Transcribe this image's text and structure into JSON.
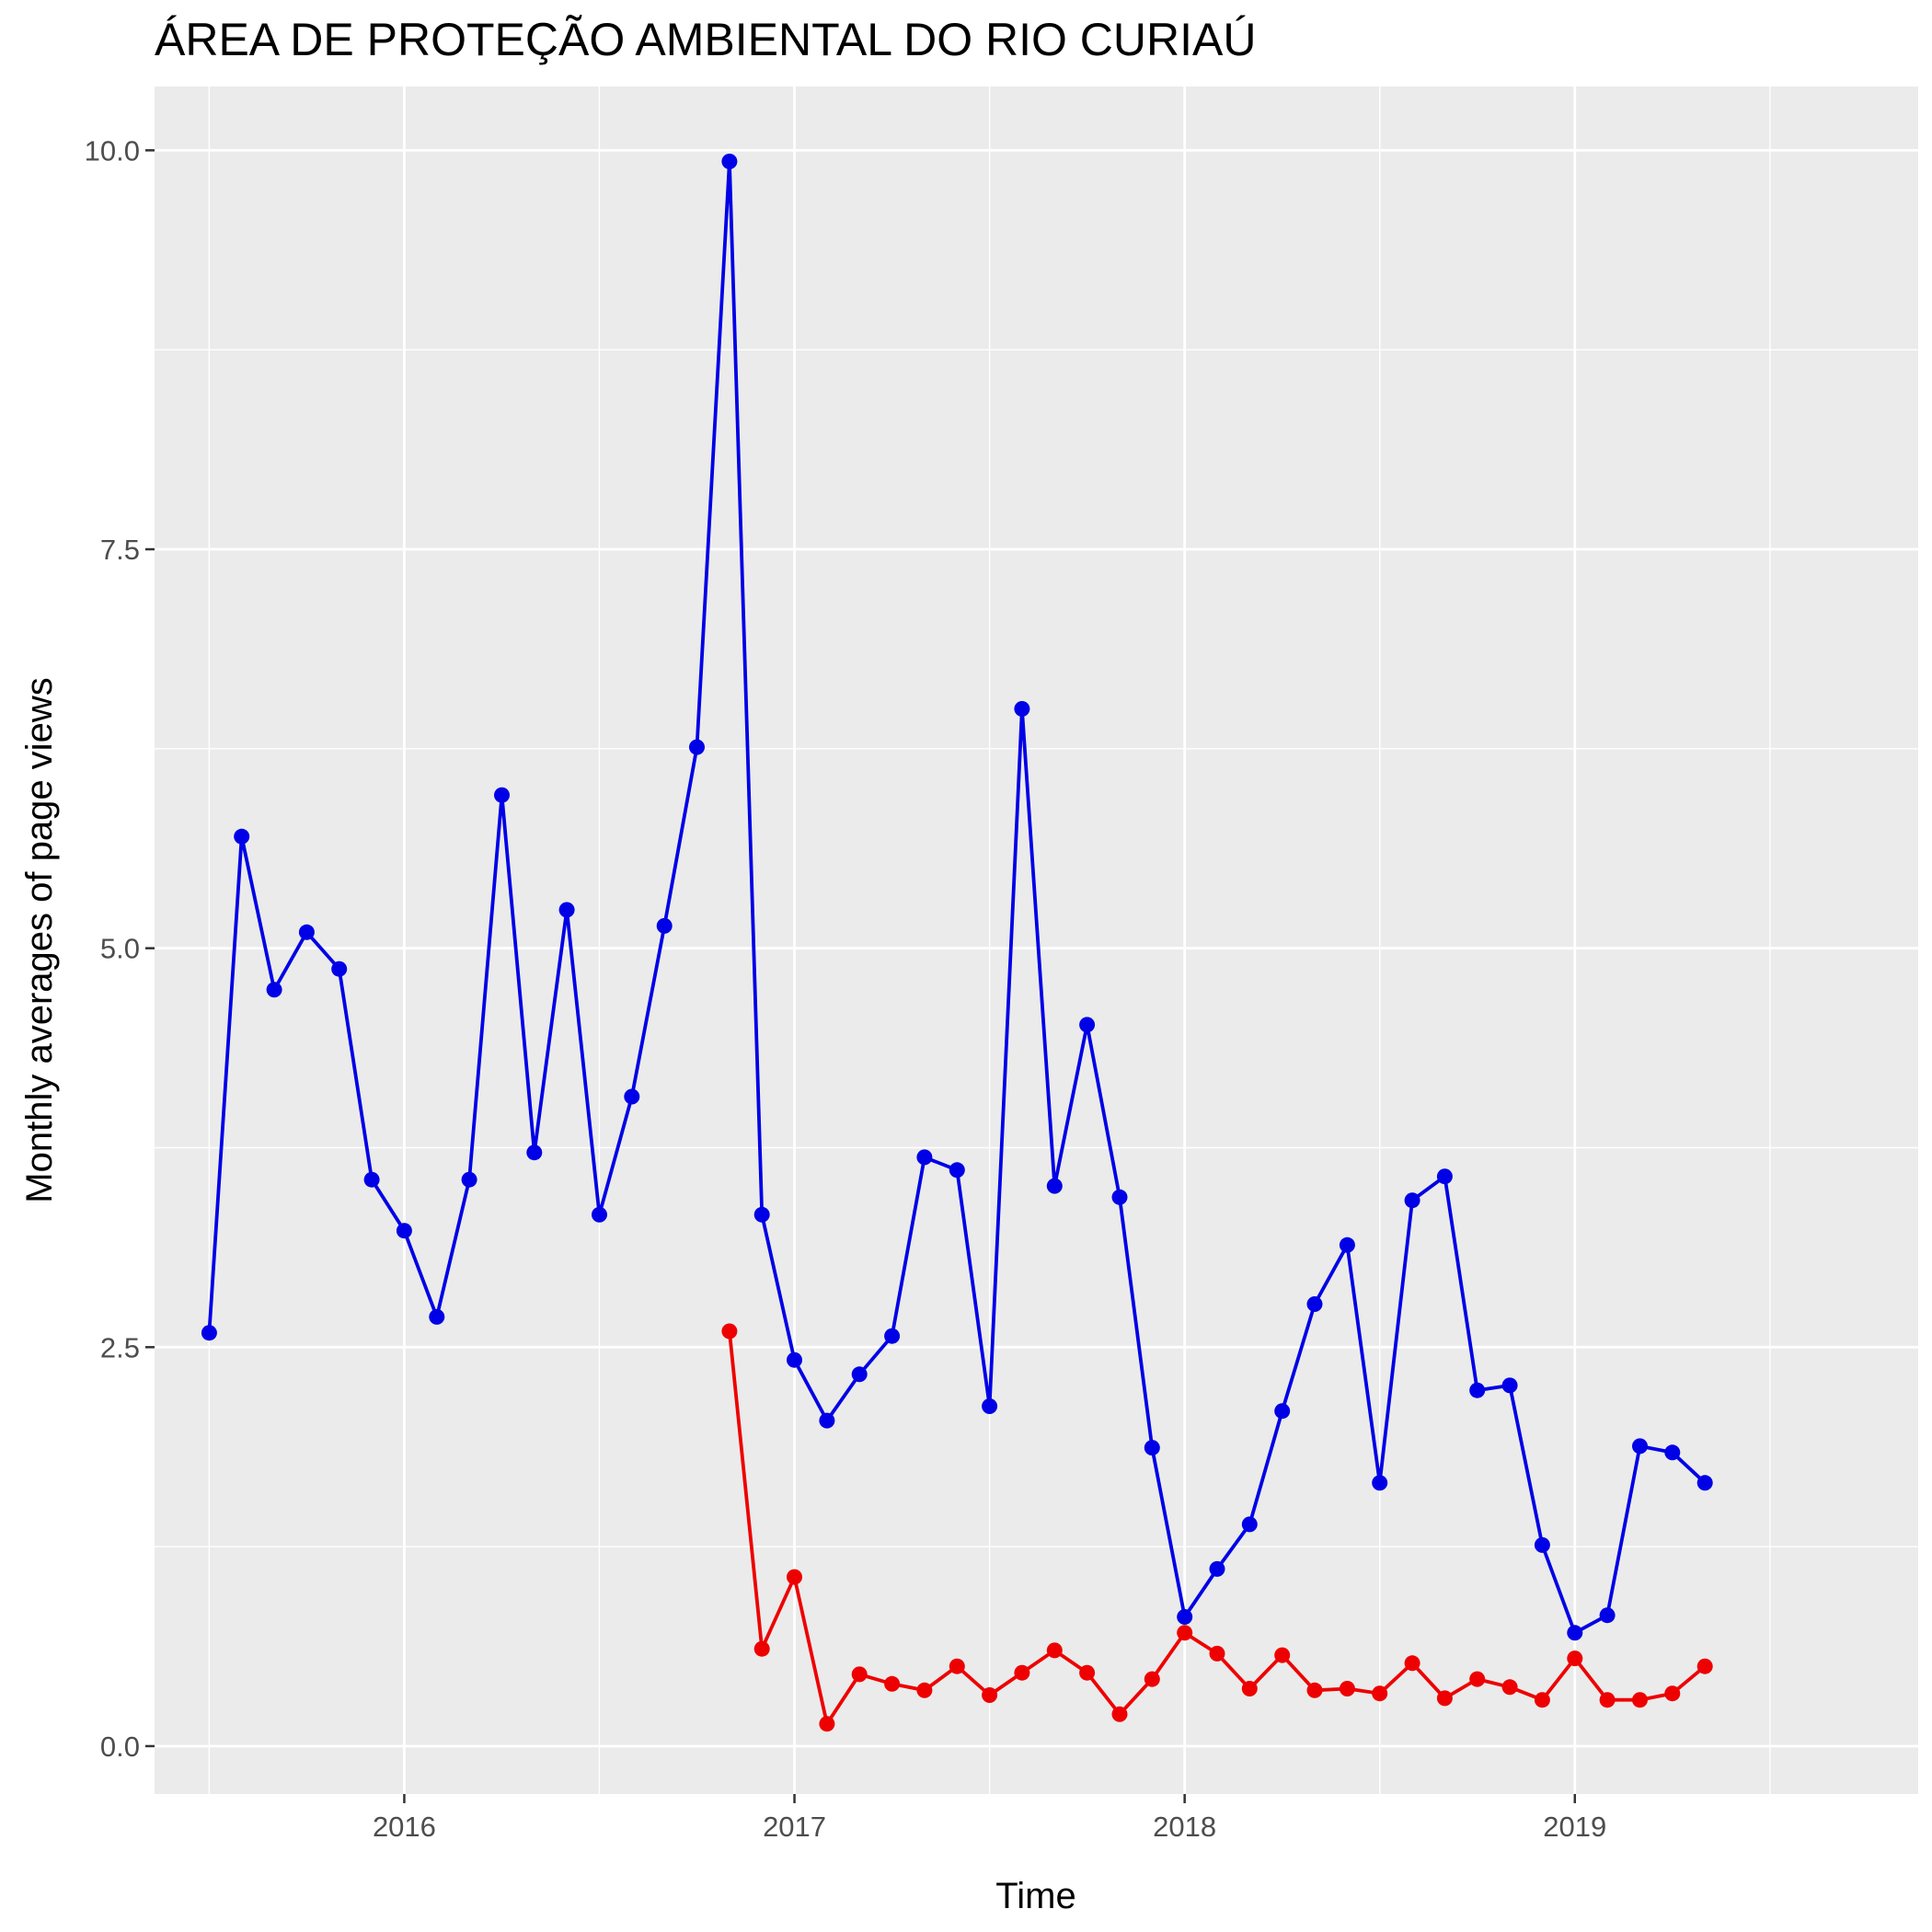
{
  "chart_data": {
    "type": "line",
    "title": "ÁREA DE PROTEÇÃO AMBIENTAL DO RIO CURIAÚ",
    "xlabel": "Time",
    "ylabel": "Monthly averages of page views",
    "xlim": [
      2015.36,
      2019.88
    ],
    "ylim": [
      -0.3,
      10.4
    ],
    "x_ticks": [
      2016,
      2017,
      2018,
      2019
    ],
    "x_tick_labels": [
      "2016",
      "2017",
      "2018",
      "2019"
    ],
    "y_ticks": [
      0,
      2.5,
      5,
      7.5,
      10
    ],
    "y_tick_labels": [
      "0.0",
      "2.5",
      "5.0",
      "7.5",
      "10.0"
    ],
    "grid": true,
    "legend": "none",
    "background_color": "#ebebeb",
    "grid_color": "#ffffff",
    "series": [
      {
        "color": "#0000e6",
        "start": [
          2015,
          7
        ],
        "values": [
          2.59,
          5.7,
          4.74,
          5.1,
          4.87,
          3.55,
          3.23,
          2.69,
          3.55,
          5.96,
          3.72,
          5.24,
          3.33,
          4.07,
          5.14,
          6.26,
          9.93,
          3.33,
          2.42,
          2.04,
          2.33,
          2.57,
          3.69,
          3.61,
          2.13,
          6.5,
          3.51,
          4.52,
          3.44,
          1.87,
          0.81,
          1.11,
          1.39,
          2.1,
          2.77,
          3.14,
          1.65,
          3.42,
          3.57,
          2.23,
          2.26,
          1.26,
          0.71,
          0.82,
          1.88,
          1.84,
          1.65
        ]
      },
      {
        "color": "#ee0000",
        "start": [
          2016,
          11
        ],
        "values": [
          2.6,
          0.61,
          1.06,
          0.14,
          0.45,
          0.39,
          0.35,
          0.5,
          0.32,
          0.46,
          0.6,
          0.46,
          0.2,
          0.42,
          0.71,
          0.58,
          0.36,
          0.57,
          0.35,
          0.36,
          0.33,
          0.52,
          0.3,
          0.42,
          0.37,
          0.29,
          0.55,
          0.29,
          0.29,
          0.33,
          0.5
        ]
      }
    ]
  }
}
